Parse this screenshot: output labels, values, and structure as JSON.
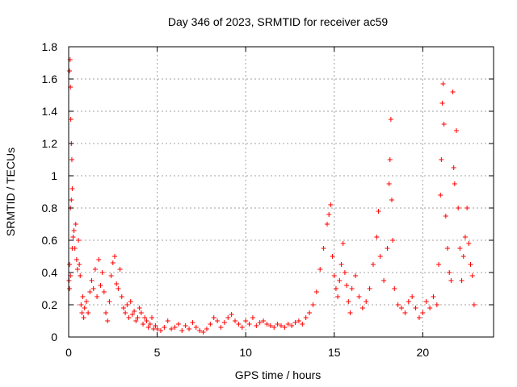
{
  "chart_data": {
    "type": "scatter",
    "title": "Day 346 of 2023, SRMTID for receiver ac59",
    "xlabel": "GPS time / hours",
    "ylabel": "SRMTID / TECUs",
    "xlim": [
      0,
      24
    ],
    "ylim": [
      0,
      1.8
    ],
    "grid": true,
    "marker": "+",
    "series_color": "#ff0000",
    "x_ticks": [
      0,
      5,
      10,
      15,
      20
    ],
    "x_tick_labels": [
      "0",
      "5",
      "10",
      "15",
      "20"
    ],
    "y_ticks": [
      0,
      0.2,
      0.4,
      0.6,
      0.8,
      1,
      1.2,
      1.4,
      1.6,
      1.8
    ],
    "y_tick_labels": [
      "0",
      "0.2",
      "0.4",
      "0.6",
      "0.8",
      "1",
      "1.2",
      "1.4",
      "1.6",
      "1.8"
    ],
    "series": [
      {
        "name": "SRMTID",
        "points": [
          [
            0.05,
            1.65
          ],
          [
            0.08,
            1.72
          ],
          [
            0.1,
            1.55
          ],
          [
            0.12,
            1.35
          ],
          [
            0.15,
            1.2
          ],
          [
            0.18,
            1.1
          ],
          [
            0.2,
            0.92
          ],
          [
            0.15,
            0.85
          ],
          [
            0.1,
            0.8
          ],
          [
            0.05,
            0.45
          ],
          [
            0.02,
            0.35
          ],
          [
            0.05,
            0.3
          ],
          [
            0.1,
            0.38
          ],
          [
            0.2,
            0.55
          ],
          [
            0.25,
            0.62
          ],
          [
            0.3,
            0.66
          ],
          [
            0.35,
            0.55
          ],
          [
            0.4,
            0.7
          ],
          [
            0.45,
            0.48
          ],
          [
            0.5,
            0.42
          ],
          [
            0.55,
            0.6
          ],
          [
            0.6,
            0.45
          ],
          [
            0.65,
            0.38
          ],
          [
            0.7,
            0.2
          ],
          [
            0.75,
            0.15
          ],
          [
            0.8,
            0.25
          ],
          [
            0.85,
            0.12
          ],
          [
            0.9,
            0.18
          ],
          [
            1.0,
            0.22
          ],
          [
            1.1,
            0.15
          ],
          [
            1.2,
            0.28
          ],
          [
            1.3,
            0.35
          ],
          [
            1.4,
            0.3
          ],
          [
            1.5,
            0.42
          ],
          [
            1.6,
            0.25
          ],
          [
            1.7,
            0.48
          ],
          [
            1.8,
            0.32
          ],
          [
            1.9,
            0.4
          ],
          [
            2.0,
            0.28
          ],
          [
            2.1,
            0.15
          ],
          [
            2.2,
            0.1
          ],
          [
            2.3,
            0.22
          ],
          [
            2.4,
            0.38
          ],
          [
            2.5,
            0.46
          ],
          [
            2.6,
            0.5
          ],
          [
            2.7,
            0.33
          ],
          [
            2.8,
            0.3
          ],
          [
            2.9,
            0.42
          ],
          [
            3.0,
            0.25
          ],
          [
            3.1,
            0.18
          ],
          [
            3.2,
            0.15
          ],
          [
            3.3,
            0.2
          ],
          [
            3.4,
            0.12
          ],
          [
            3.5,
            0.22
          ],
          [
            3.6,
            0.14
          ],
          [
            3.7,
            0.16
          ],
          [
            3.8,
            0.1
          ],
          [
            3.9,
            0.12
          ],
          [
            4.0,
            0.18
          ],
          [
            4.1,
            0.15
          ],
          [
            4.2,
            0.08
          ],
          [
            4.3,
            0.12
          ],
          [
            4.4,
            0.1
          ],
          [
            4.5,
            0.06
          ],
          [
            4.6,
            0.08
          ],
          [
            4.7,
            0.12
          ],
          [
            4.8,
            0.05
          ],
          [
            4.9,
            0.07
          ],
          [
            5.0,
            0.05
          ],
          [
            5.2,
            0.04
          ],
          [
            5.4,
            0.06
          ],
          [
            5.6,
            0.1
          ],
          [
            5.8,
            0.05
          ],
          [
            6.0,
            0.06
          ],
          [
            6.2,
            0.08
          ],
          [
            6.4,
            0.04
          ],
          [
            6.6,
            0.07
          ],
          [
            6.8,
            0.05
          ],
          [
            7.0,
            0.09
          ],
          [
            7.2,
            0.06
          ],
          [
            7.4,
            0.04
          ],
          [
            7.6,
            0.03
          ],
          [
            7.8,
            0.05
          ],
          [
            8.0,
            0.08
          ],
          [
            8.2,
            0.12
          ],
          [
            8.4,
            0.1
          ],
          [
            8.6,
            0.06
          ],
          [
            8.8,
            0.09
          ],
          [
            9.0,
            0.12
          ],
          [
            9.2,
            0.14
          ],
          [
            9.4,
            0.1
          ],
          [
            9.6,
            0.08
          ],
          [
            9.8,
            0.06
          ],
          [
            10.0,
            0.1
          ],
          [
            10.2,
            0.08
          ],
          [
            10.4,
            0.12
          ],
          [
            10.6,
            0.07
          ],
          [
            10.8,
            0.09
          ],
          [
            11.0,
            0.1
          ],
          [
            11.2,
            0.08
          ],
          [
            11.4,
            0.07
          ],
          [
            11.6,
            0.06
          ],
          [
            11.8,
            0.08
          ],
          [
            12.0,
            0.07
          ],
          [
            12.2,
            0.06
          ],
          [
            12.4,
            0.08
          ],
          [
            12.6,
            0.07
          ],
          [
            12.8,
            0.09
          ],
          [
            13.0,
            0.1
          ],
          [
            13.2,
            0.08
          ],
          [
            13.4,
            0.12
          ],
          [
            13.6,
            0.15
          ],
          [
            13.8,
            0.2
          ],
          [
            14.0,
            0.28
          ],
          [
            14.2,
            0.42
          ],
          [
            14.4,
            0.55
          ],
          [
            14.6,
            0.7
          ],
          [
            14.7,
            0.76
          ],
          [
            14.8,
            0.82
          ],
          [
            14.9,
            0.5
          ],
          [
            15.0,
            0.38
          ],
          [
            15.1,
            0.3
          ],
          [
            15.2,
            0.25
          ],
          [
            15.3,
            0.35
          ],
          [
            15.4,
            0.45
          ],
          [
            15.5,
            0.58
          ],
          [
            15.6,
            0.4
          ],
          [
            15.7,
            0.32
          ],
          [
            15.8,
            0.22
          ],
          [
            15.9,
            0.15
          ],
          [
            16.0,
            0.3
          ],
          [
            16.2,
            0.38
          ],
          [
            16.4,
            0.25
          ],
          [
            16.6,
            0.18
          ],
          [
            16.8,
            0.22
          ],
          [
            17.0,
            0.3
          ],
          [
            17.2,
            0.45
          ],
          [
            17.4,
            0.62
          ],
          [
            17.5,
            0.78
          ],
          [
            17.6,
            0.5
          ],
          [
            17.8,
            0.35
          ],
          [
            18.0,
            0.55
          ],
          [
            18.1,
            0.95
          ],
          [
            18.15,
            1.1
          ],
          [
            18.2,
            1.35
          ],
          [
            18.25,
            0.85
          ],
          [
            18.3,
            0.6
          ],
          [
            18.4,
            0.3
          ],
          [
            18.6,
            0.2
          ],
          [
            18.8,
            0.18
          ],
          [
            19.0,
            0.15
          ],
          [
            19.2,
            0.22
          ],
          [
            19.4,
            0.25
          ],
          [
            19.6,
            0.18
          ],
          [
            19.8,
            0.12
          ],
          [
            20.0,
            0.15
          ],
          [
            20.2,
            0.22
          ],
          [
            20.4,
            0.18
          ],
          [
            20.6,
            0.25
          ],
          [
            20.8,
            0.2
          ],
          [
            20.9,
            0.45
          ],
          [
            21.0,
            0.88
          ],
          [
            21.05,
            1.1
          ],
          [
            21.1,
            1.45
          ],
          [
            21.15,
            1.57
          ],
          [
            21.2,
            1.32
          ],
          [
            21.3,
            0.75
          ],
          [
            21.4,
            0.55
          ],
          [
            21.5,
            0.4
          ],
          [
            21.6,
            0.35
          ],
          [
            21.7,
            1.52
          ],
          [
            21.75,
            1.05
          ],
          [
            21.8,
            0.95
          ],
          [
            21.9,
            1.28
          ],
          [
            22.0,
            0.8
          ],
          [
            22.1,
            0.55
          ],
          [
            22.2,
            0.35
          ],
          [
            22.3,
            0.5
          ],
          [
            22.4,
            0.62
          ],
          [
            22.5,
            0.8
          ],
          [
            22.6,
            0.58
          ],
          [
            22.7,
            0.45
          ],
          [
            22.8,
            0.38
          ],
          [
            22.9,
            0.2
          ]
        ]
      }
    ]
  }
}
